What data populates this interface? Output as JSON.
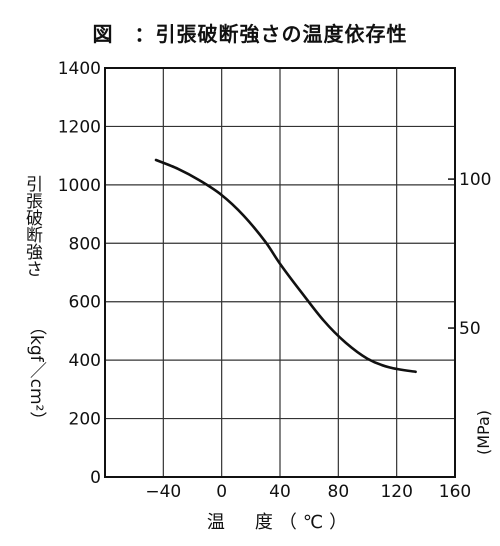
{
  "title": "図　：引張破断強さの温度依存性",
  "chart_data": {
    "type": "line",
    "title": "図　：引張破断強さの温度依存性",
    "xlabel": "温　度（℃）",
    "ylabel": "引張破断強さ",
    "ylabel_unit": "（kgf／cm²）",
    "y2label": "(MPa)",
    "xlim": [
      -80,
      160
    ],
    "ylim": [
      0,
      1400
    ],
    "x_ticks": [
      -40,
      0,
      40,
      80,
      120,
      160
    ],
    "x_tick_labels": [
      "−40",
      "0",
      "40",
      "80",
      "120",
      "160"
    ],
    "y_ticks": [
      0,
      200,
      400,
      600,
      800,
      1000,
      1200,
      1400
    ],
    "y2_ticks": [
      50,
      100
    ],
    "y2_factor": 10.197,
    "grid": true,
    "series": [
      {
        "color": "#111111",
        "x": [
          -45,
          -30,
          -15,
          0,
          15,
          30,
          40,
          55,
          70,
          85,
          100,
          115,
          133
        ],
        "y": [
          1085,
          1055,
          1015,
          965,
          895,
          805,
          730,
          630,
          535,
          460,
          405,
          375,
          360
        ]
      }
    ]
  }
}
